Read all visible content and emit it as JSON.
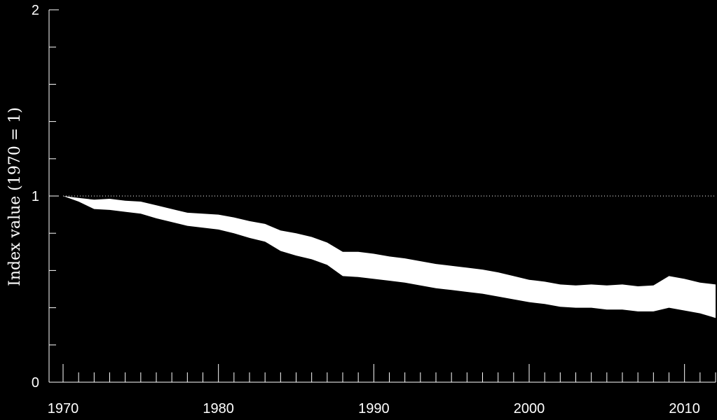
{
  "chart_data": {
    "type": "area",
    "title": "",
    "xlabel": "",
    "ylabel": "Index value (1970 = 1)",
    "xlim": [
      1970,
      2012
    ],
    "ylim": [
      0,
      2
    ],
    "x_ticks_major": [
      1970,
      1980,
      1990,
      2000,
      2010
    ],
    "x_tick_labels": [
      "1970",
      "1980",
      "1990",
      "2000",
      "2010"
    ],
    "x_ticks_minor_step": 1,
    "y_ticks_major": [
      0,
      1,
      2
    ],
    "y_tick_labels": [
      "0",
      "1",
      "2"
    ],
    "y_ticks_minor_step": 0.2,
    "reference_line": {
      "y": 1,
      "style": "dotted"
    },
    "grid": false,
    "legend": "none",
    "colors": {
      "background": "#000000",
      "band": "#ffffff",
      "axis": "#ffffff"
    },
    "x": [
      1970,
      1971,
      1972,
      1973,
      1974,
      1975,
      1976,
      1977,
      1978,
      1979,
      1980,
      1981,
      1982,
      1983,
      1984,
      1985,
      1986,
      1987,
      1988,
      1989,
      1990,
      1991,
      1992,
      1993,
      1994,
      1995,
      1996,
      1997,
      1998,
      1999,
      2000,
      2001,
      2002,
      2003,
      2004,
      2005,
      2006,
      2007,
      2008,
      2009,
      2010,
      2011,
      2012
    ],
    "series": [
      {
        "upper": [
          1.0,
          0.99,
          0.98,
          0.985,
          0.975,
          0.97,
          0.95,
          0.93,
          0.91,
          0.905,
          0.9,
          0.885,
          0.865,
          0.85,
          0.815,
          0.8,
          0.78,
          0.75,
          0.7,
          0.7,
          0.69,
          0.675,
          0.665,
          0.65,
          0.635,
          0.625,
          0.615,
          0.605,
          0.59,
          0.57,
          0.55,
          0.54,
          0.525,
          0.52,
          0.525,
          0.52,
          0.525,
          0.515,
          0.52,
          0.57,
          0.555,
          0.535,
          0.525
        ],
        "lower": [
          1.0,
          0.97,
          0.93,
          0.925,
          0.915,
          0.905,
          0.88,
          0.86,
          0.84,
          0.83,
          0.82,
          0.8,
          0.775,
          0.755,
          0.705,
          0.68,
          0.66,
          0.63,
          0.57,
          0.565,
          0.555,
          0.545,
          0.535,
          0.52,
          0.505,
          0.495,
          0.485,
          0.475,
          0.46,
          0.445,
          0.43,
          0.42,
          0.405,
          0.4,
          0.4,
          0.39,
          0.39,
          0.38,
          0.38,
          0.4,
          0.385,
          0.37,
          0.345
        ]
      }
    ]
  }
}
